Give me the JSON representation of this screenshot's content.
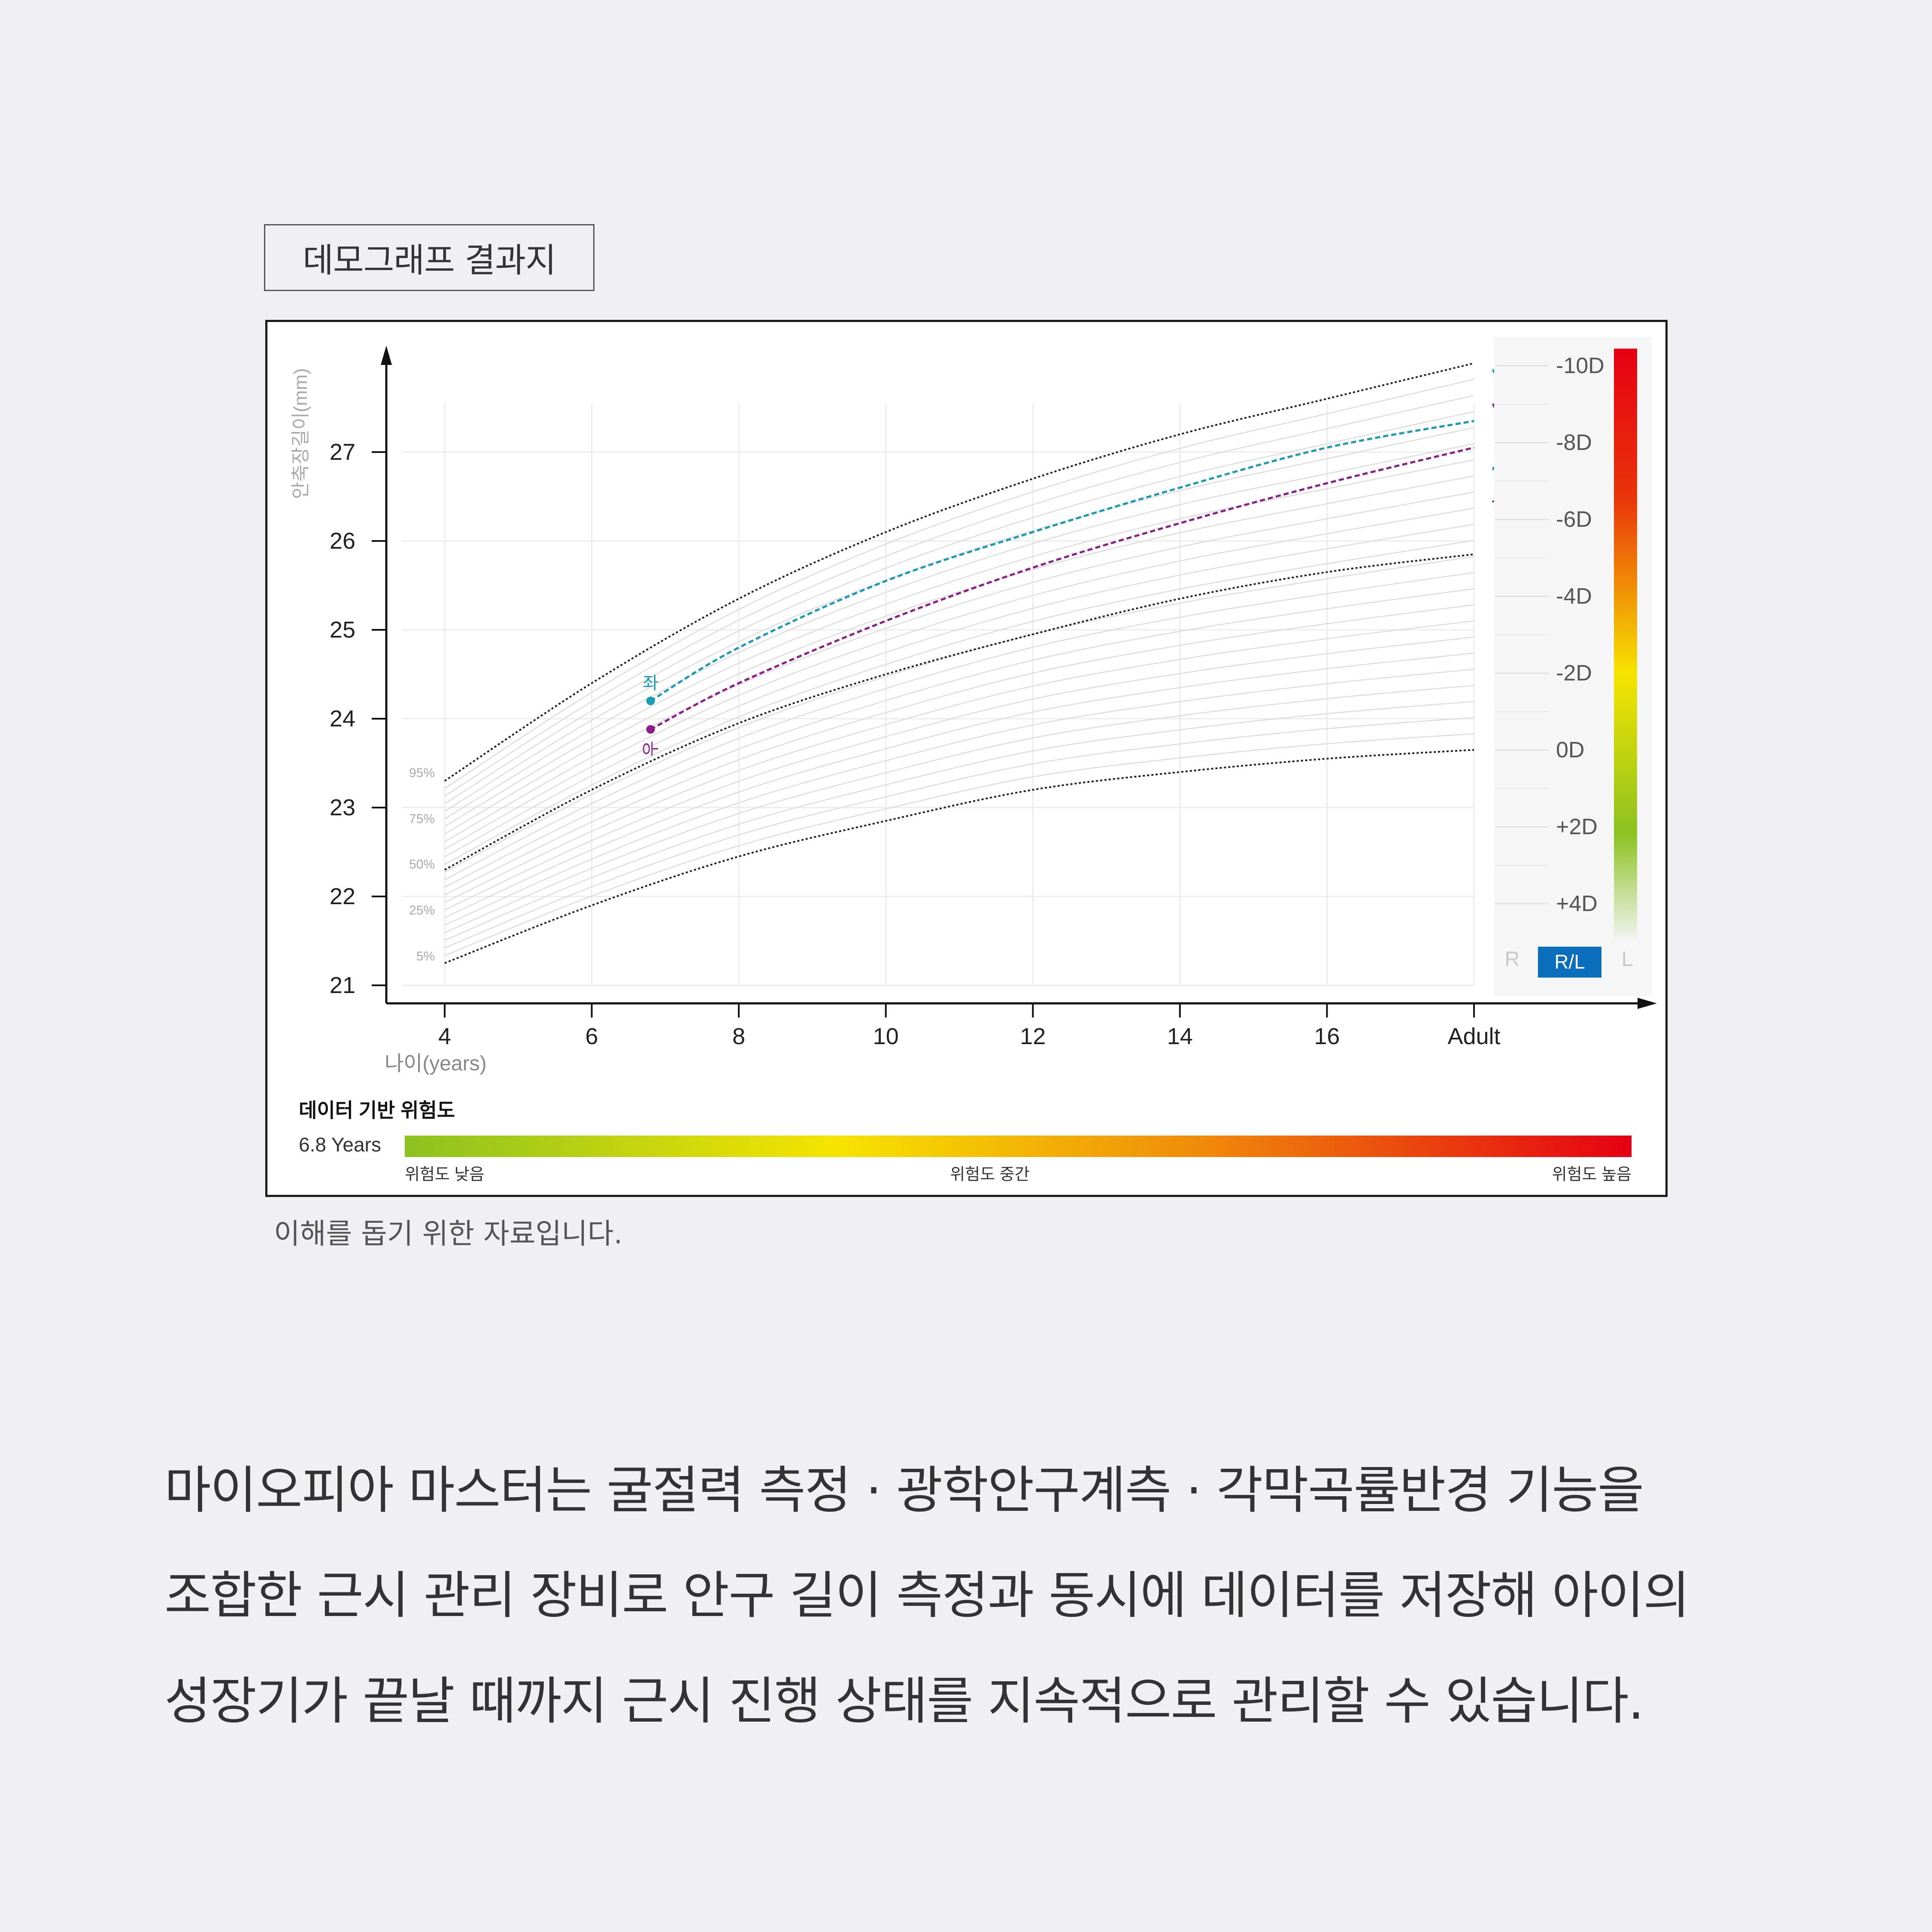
{
  "tag_label": "데모그래프 결과지",
  "caption": "이해를 돕기 위한 자료입니다.",
  "description": [
    "마이오피아 마스터는 굴절력 측정 · 광학안구계측 · 각막곡률반경 기능을",
    "조합한 근시 관리 장비로 안구 길이 측정과 동시에 데이터를 저장해 아이의",
    "성장기가 끝날 때까지 근시 진행 상태를 지속적으로 관리할 수 있습니다."
  ],
  "chart_data": {
    "type": "line",
    "ylabel": "안축장길이(mm)",
    "xlabel": "나이(years)",
    "x_ticks": [
      "4",
      "6",
      "8",
      "10",
      "12",
      "14",
      "16",
      "Adult"
    ],
    "x_values": [
      4,
      6,
      8,
      10,
      12,
      14,
      16,
      18
    ],
    "y_ticks": [
      "21",
      "22",
      "23",
      "24",
      "25",
      "26",
      "27"
    ],
    "ylim": [
      21,
      28
    ],
    "grid": true,
    "percentile_labels": [
      "95%",
      "75%",
      "50%",
      "25%",
      "5%"
    ],
    "percentile_curves": [
      {
        "x": [
          4,
          6,
          8,
          10,
          12,
          14,
          16,
          18
        ],
        "y": [
          23.3,
          24.4,
          25.35,
          26.1,
          26.7,
          27.2,
          27.6,
          28.0
        ]
      },
      {
        "x": [
          4,
          6,
          8,
          10,
          12,
          14,
          16,
          18
        ],
        "y": [
          22.3,
          23.2,
          23.95,
          24.5,
          24.95,
          25.35,
          25.65,
          25.85
        ]
      },
      {
        "x": [
          4,
          6,
          8,
          10,
          12,
          14,
          16,
          18
        ],
        "y": [
          21.25,
          21.9,
          22.45,
          22.85,
          23.2,
          23.4,
          23.55,
          23.65
        ]
      }
    ],
    "series": [
      {
        "name": "좌",
        "color": "#1a9bb5",
        "measured": {
          "x": 6.8,
          "y": 24.2
        },
        "projection": {
          "x": [
            6.8,
            8,
            10,
            12,
            14,
            16,
            18
          ],
          "y": [
            24.2,
            24.8,
            25.55,
            26.1,
            26.6,
            27.05,
            27.35
          ]
        }
      },
      {
        "name": "우",
        "color": "#8e1e8c",
        "measured": {
          "x": 6.8,
          "y": 23.88
        },
        "projection": {
          "x": [
            6.8,
            8,
            10,
            12,
            14,
            16,
            18
          ],
          "y": [
            23.88,
            24.4,
            25.1,
            25.7,
            26.2,
            26.65,
            27.05
          ]
        }
      }
    ],
    "diopter_scale": {
      "labels": [
        "-10D",
        "-8D",
        "-6D",
        "-4D",
        "-2D",
        "0D",
        "+2D",
        "+4D"
      ],
      "toggle": {
        "left": "R",
        "active": "R/L",
        "right": "L"
      },
      "colors": {
        "high": "#e60012",
        "mid": "#f6e400",
        "low": "#8cc220"
      }
    },
    "risk": {
      "title": "데이터 기반 위험도",
      "age_label": "6.8 Years",
      "low_label": "위험도 낮음",
      "mid_label": "위험도 중간",
      "high_label": "위험도 높음"
    }
  }
}
